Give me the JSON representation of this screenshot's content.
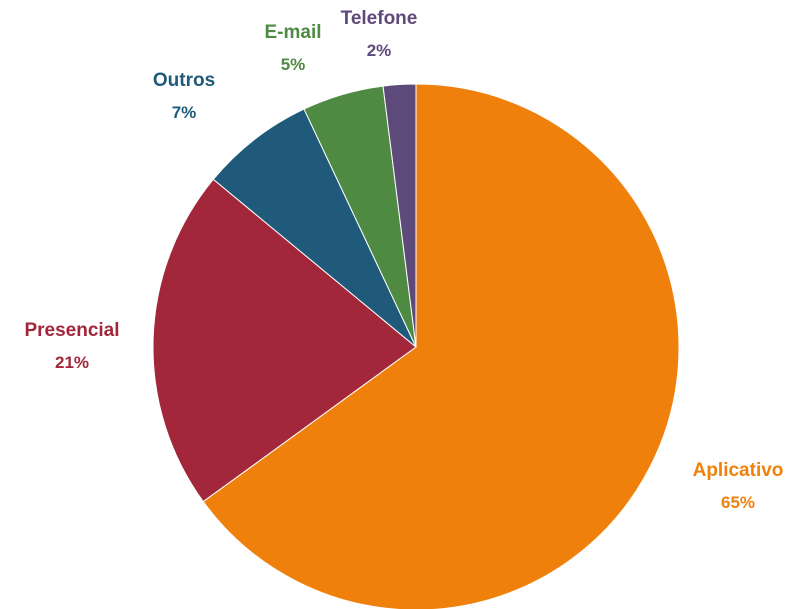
{
  "chart_data": {
    "type": "pie",
    "title": "",
    "slices": [
      {
        "label": "Aplicativo",
        "value": 65,
        "value_text": "65%",
        "color": "#F0800C"
      },
      {
        "label": "Presencial",
        "value": 21,
        "value_text": "21%",
        "color": "#A2273A"
      },
      {
        "label": "Outros",
        "value": 7,
        "value_text": "7%",
        "color": "#1F5A7A"
      },
      {
        "label": "E-mail",
        "value": 5,
        "value_text": "5%",
        "color": "#4E8A42"
      },
      {
        "label": "Telefone",
        "value": 2,
        "value_text": "2%",
        "color": "#5E4A7A"
      }
    ],
    "start_angle_deg": 0,
    "direction": "clockwise",
    "legend": "none",
    "labels_outside": true
  }
}
